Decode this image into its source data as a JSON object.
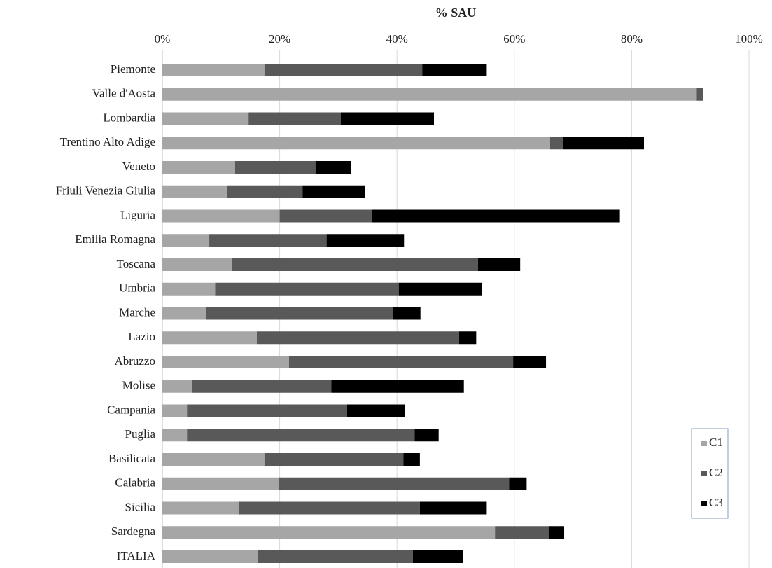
{
  "chart_data": {
    "type": "bar",
    "orientation": "horizontal",
    "stacked": true,
    "title": "% SAU",
    "categories": [
      "Piemonte",
      "Valle d'Aosta",
      "Lombardia",
      "Trentino Alto Adige",
      "Veneto",
      "Friuli Venezia Giulia",
      "Liguria",
      "Emilia Romagna",
      "Toscana",
      "Umbria",
      "Marche",
      "Lazio",
      "Abruzzo",
      "Molise",
      "Campania",
      "Puglia",
      "Basilicata",
      "Calabria",
      "Sicilia",
      "Sardegna",
      "ITALIA"
    ],
    "series": [
      {
        "name": "C1",
        "color": "#a6a6a6",
        "values": [
          17.4,
          91.1,
          14.7,
          66.1,
          12.4,
          11.0,
          20.0,
          8.0,
          11.9,
          9.0,
          7.4,
          16.1,
          21.6,
          5.1,
          4.2,
          4.2,
          17.4,
          19.9,
          13.1,
          56.7,
          16.3
        ]
      },
      {
        "name": "C2",
        "color": "#595959",
        "values": [
          26.9,
          1.1,
          15.7,
          2.2,
          13.7,
          12.9,
          15.7,
          20.0,
          41.9,
          31.3,
          31.9,
          34.5,
          38.2,
          23.7,
          27.3,
          38.8,
          23.7,
          39.2,
          30.8,
          9.2,
          26.4
        ]
      },
      {
        "name": "C3",
        "color": "#000000",
        "values": [
          11.0,
          0,
          15.9,
          13.8,
          6.1,
          10.6,
          42.3,
          13.2,
          7.2,
          14.2,
          4.7,
          2.9,
          5.6,
          22.6,
          9.8,
          4.1,
          2.8,
          3.0,
          11.4,
          2.6,
          8.6
        ]
      }
    ],
    "xlim": [
      0,
      100
    ],
    "xticks": [
      {
        "value": 0,
        "label": "0%"
      },
      {
        "value": 20,
        "label": "20%"
      },
      {
        "value": 40,
        "label": "40%"
      },
      {
        "value": 60,
        "label": "60%"
      },
      {
        "value": 80,
        "label": "80%"
      },
      {
        "value": 100,
        "label": "100%"
      }
    ],
    "grid": true,
    "legend": "lower right"
  }
}
